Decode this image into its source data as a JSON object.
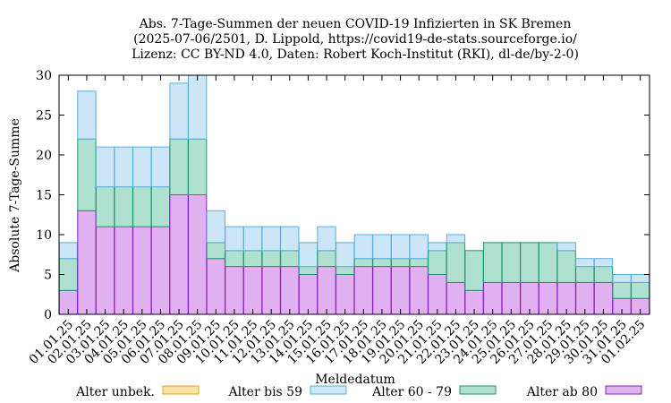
{
  "chart_data": {
    "type": "bar",
    "stacked": true,
    "title_lines": [
      "Abs. 7-Tage-Summen der neuen COVID-19 Infizierten in SK Bremen",
      "(2025-07-06/2501, D. Lippold, https://covid19-de-stats.sourceforge.io/",
      "Lizenz: CC BY-ND 4.0, Daten: Robert Koch-Institut (RKI), dl-de/by-2-0)"
    ],
    "xlabel": "Meldedatum",
    "ylabel": "Absolute 7-Tage-Summe",
    "ylim": [
      0,
      30
    ],
    "yticks": [
      0,
      5,
      10,
      15,
      20,
      25,
      30
    ],
    "grid": false,
    "legend_position": "bottom",
    "categories": [
      "01.01.25",
      "02.01.25",
      "03.01.25",
      "04.01.25",
      "05.01.25",
      "06.01.25",
      "07.01.25",
      "08.01.25",
      "09.01.25",
      "10.01.25",
      "11.01.25",
      "12.01.25",
      "13.01.25",
      "14.01.25",
      "15.01.25",
      "16.01.25",
      "17.01.25",
      "18.01.25",
      "19.01.25",
      "20.01.25",
      "21.01.25",
      "22.01.25",
      "23.01.25",
      "24.01.25",
      "25.01.25",
      "26.01.25",
      "27.01.25",
      "28.01.25",
      "29.01.25",
      "30.01.25",
      "31.01.25",
      "01.02.25"
    ],
    "series": [
      {
        "name": "Alter unbek.",
        "fill": "#fbe3a8",
        "stroke": "#e6a020",
        "values": [
          0,
          0,
          0,
          0,
          0,
          0,
          0,
          0,
          0,
          0,
          0,
          0,
          0,
          0,
          0,
          0,
          0,
          0,
          0,
          0,
          0,
          0,
          0,
          0,
          0,
          0,
          0,
          0,
          0,
          0,
          0,
          0
        ]
      },
      {
        "name": "Alter bis 59",
        "fill": "#cce6f8",
        "stroke": "#5aaedc",
        "values": [
          2,
          6,
          5,
          5,
          5,
          5,
          7,
          8,
          4,
          3,
          3,
          3,
          3,
          3,
          3,
          3,
          3,
          3,
          3,
          3,
          1,
          1,
          0,
          0,
          0,
          0,
          0,
          1,
          1,
          1,
          1,
          1
        ]
      },
      {
        "name": "Alter 60 - 79",
        "fill": "#b0e0d0",
        "stroke": "#1e9870",
        "values": [
          4,
          9,
          5,
          5,
          5,
          5,
          7,
          7,
          2,
          2,
          2,
          2,
          2,
          1,
          2,
          1,
          1,
          1,
          1,
          1,
          3,
          5,
          5,
          5,
          5,
          5,
          5,
          4,
          2,
          2,
          2,
          2
        ]
      },
      {
        "name": "Alter ab 80",
        "fill": "#e0b0f0",
        "stroke": "#8a20c0",
        "values": [
          3,
          13,
          11,
          11,
          11,
          11,
          15,
          15,
          7,
          6,
          6,
          6,
          6,
          5,
          6,
          5,
          6,
          6,
          6,
          6,
          5,
          4,
          3,
          4,
          4,
          4,
          4,
          4,
          4,
          4,
          2,
          2
        ]
      }
    ]
  }
}
